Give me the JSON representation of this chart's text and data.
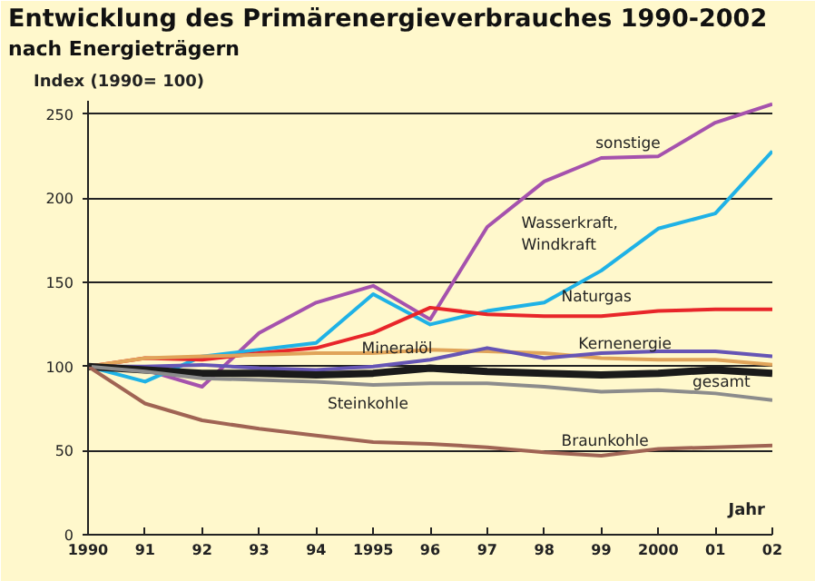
{
  "chart_data": {
    "type": "line",
    "title": "Entwicklung des Primärenergieverbrauches 1990-2002",
    "subtitle": "nach Energieträgern",
    "ylabel": "Index (1990= 100)",
    "xlabel": "Jahr",
    "x": [
      1990,
      1991,
      1992,
      1993,
      1994,
      1995,
      1996,
      1997,
      1998,
      1999,
      2000,
      2001,
      2002
    ],
    "xlim": [
      1990,
      2002
    ],
    "xticks": [
      {
        "value": 1990,
        "label": "1990"
      },
      {
        "value": 1991,
        "label": "91"
      },
      {
        "value": 1992,
        "label": "92"
      },
      {
        "value": 1993,
        "label": "93"
      },
      {
        "value": 1994,
        "label": "94"
      },
      {
        "value": 1995,
        "label": "1995"
      },
      {
        "value": 1996,
        "label": "96"
      },
      {
        "value": 1997,
        "label": "97"
      },
      {
        "value": 1998,
        "label": "98"
      },
      {
        "value": 1999,
        "label": "99"
      },
      {
        "value": 2000,
        "label": "2000"
      },
      {
        "value": 2001,
        "label": "01"
      },
      {
        "value": 2002,
        "label": "02"
      }
    ],
    "ylim": [
      0,
      258
    ],
    "yticks": [
      0,
      50,
      100,
      150,
      200,
      250
    ],
    "grid": "y",
    "legend": false,
    "marker": "none",
    "line_style": "solid",
    "series": [
      {
        "name": "sonstige",
        "color": "#a552ad",
        "values": [
          100,
          98,
          88,
          120,
          138,
          148,
          128,
          183,
          210,
          224,
          225,
          245,
          256
        ]
      },
      {
        "name": "Wasserkraft,\nWindkraft",
        "color": "#1fb2e6",
        "values": [
          100,
          91,
          106,
          110,
          114,
          143,
          125,
          133,
          138,
          157,
          182,
          191,
          228
        ]
      },
      {
        "name": "Naturgas",
        "color": "#e8262a",
        "values": [
          100,
          105,
          104,
          108,
          111,
          120,
          135,
          131,
          130,
          130,
          133,
          134,
          134
        ]
      },
      {
        "name": "Mineralöl",
        "color": "#e0a45a",
        "values": [
          100,
          105,
          106,
          107,
          108,
          108,
          110,
          109,
          108,
          105,
          104,
          104,
          101
        ]
      },
      {
        "name": "Kernenergie",
        "color": "#6655b5",
        "values": [
          100,
          100,
          101,
          99,
          98,
          100,
          104,
          111,
          105,
          108,
          109,
          109,
          106
        ]
      },
      {
        "name": "gesamt",
        "color": "#1a1a1a",
        "values": [
          100,
          98,
          96,
          96,
          95,
          96,
          99,
          97,
          96,
          95,
          96,
          98,
          96
        ]
      },
      {
        "name": "Steinkohle",
        "color": "#8c8c8c",
        "values": [
          100,
          97,
          93,
          92,
          91,
          89,
          90,
          90,
          88,
          85,
          86,
          84,
          80
        ]
      },
      {
        "name": "Braunkohle",
        "color": "#a06454",
        "values": [
          100,
          78,
          68,
          63,
          59,
          55,
          54,
          52,
          49,
          47,
          51,
          52,
          53
        ]
      }
    ]
  }
}
